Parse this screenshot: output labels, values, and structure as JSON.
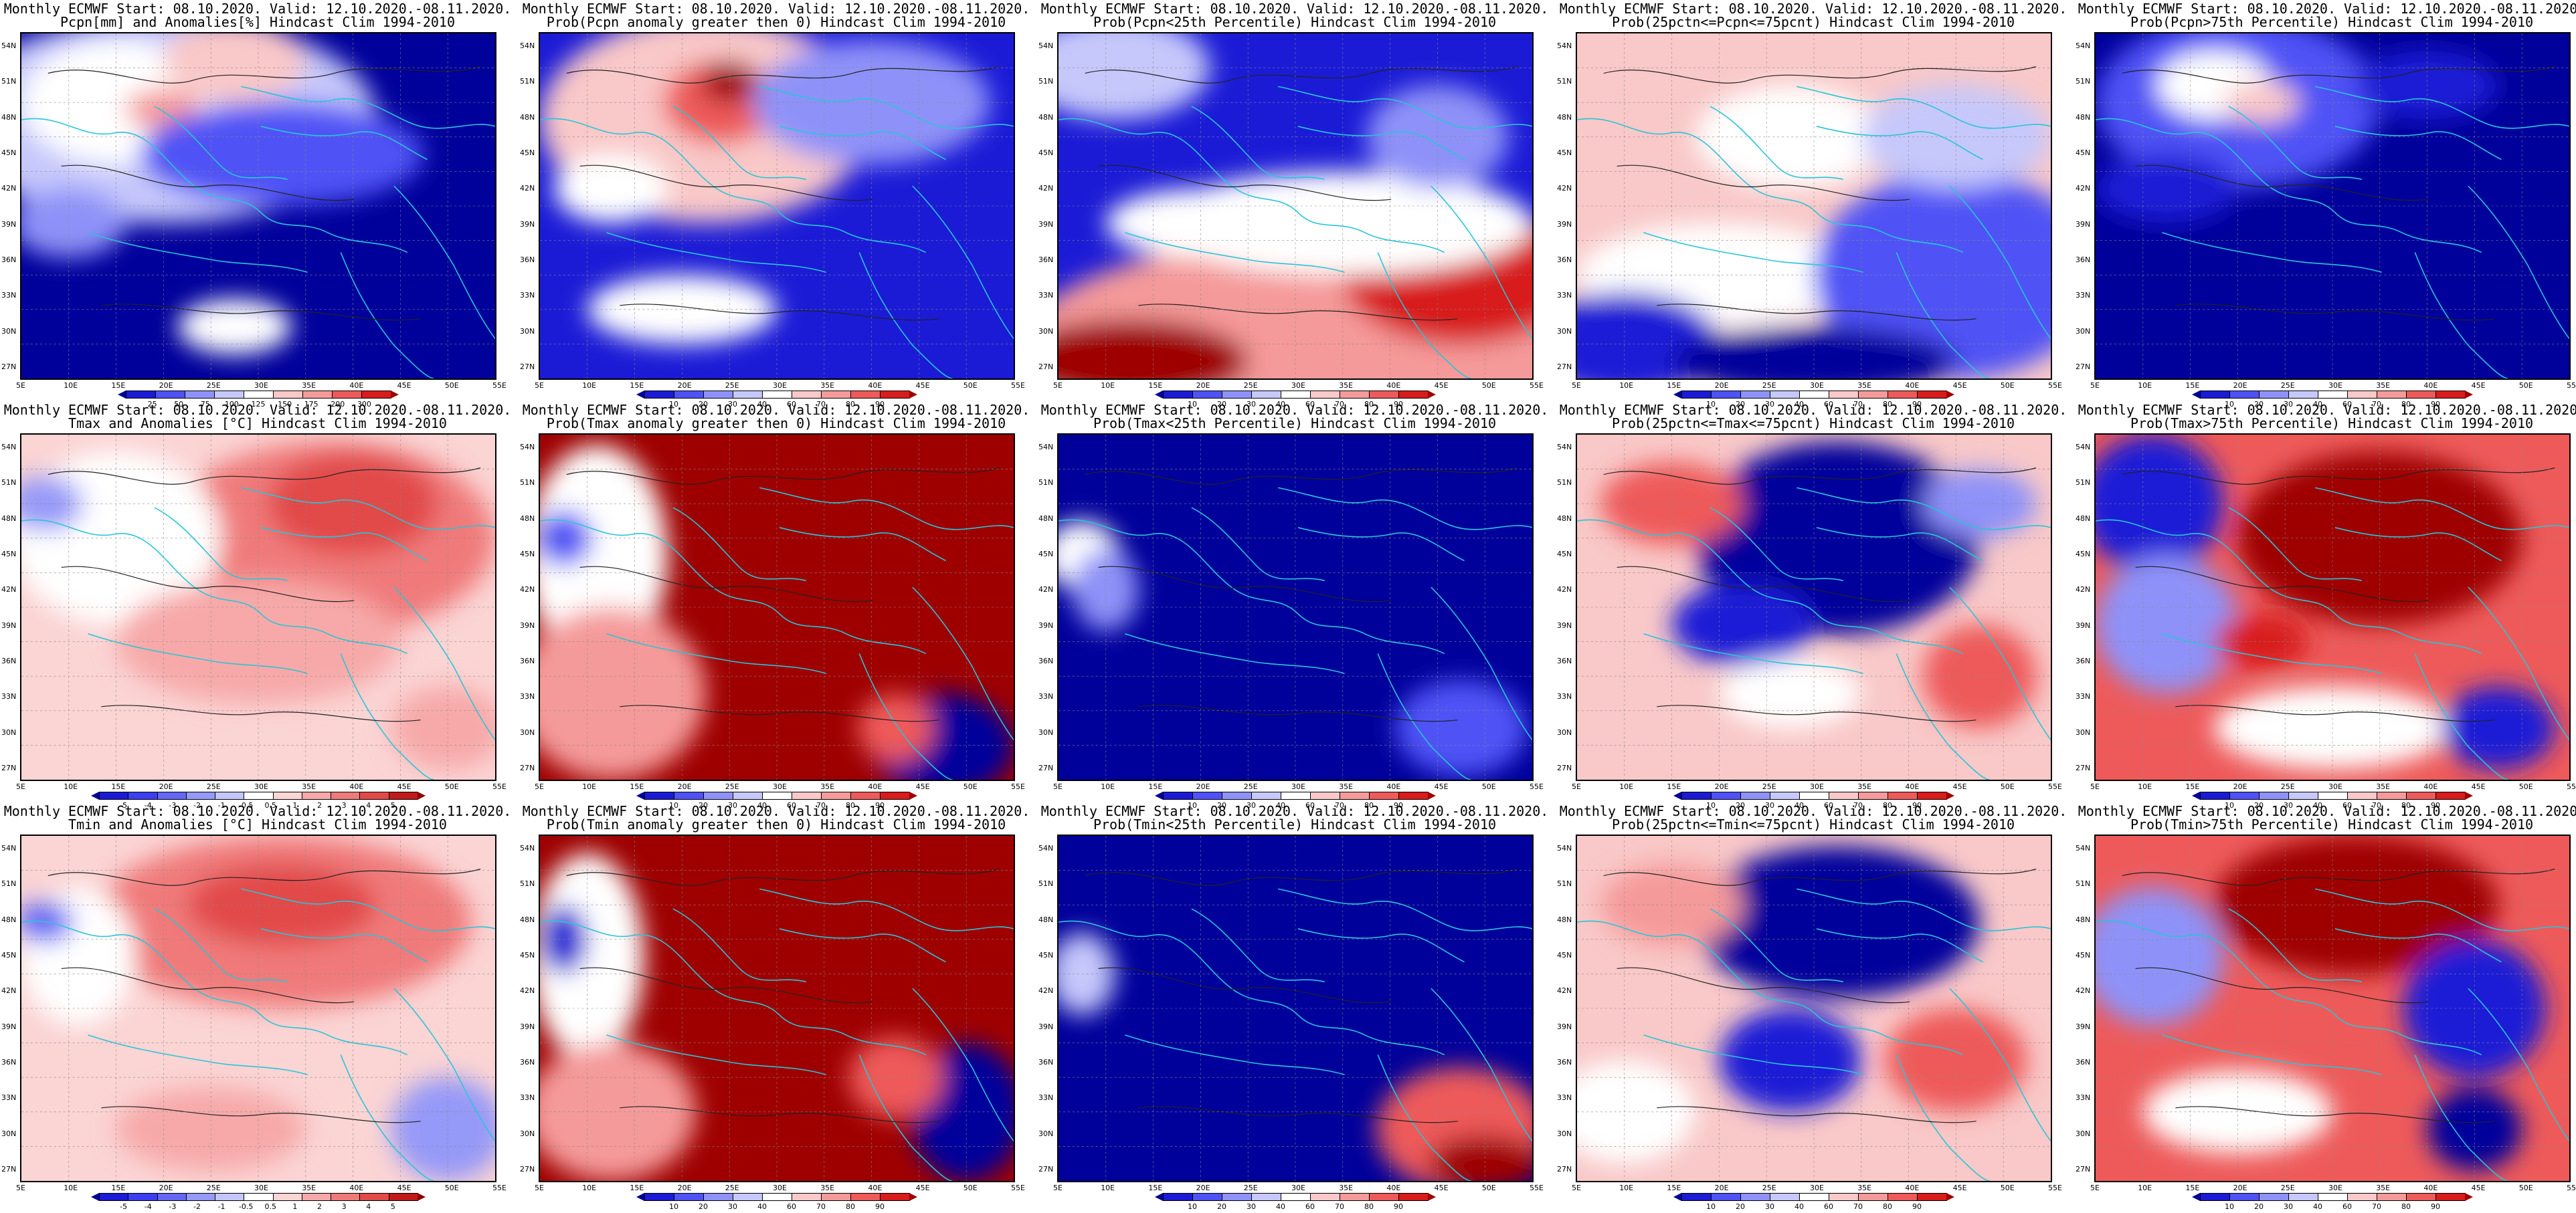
{
  "figure": {
    "common_header": "Monthly ECMWF Start: 08.10.2020. Valid: 12.10.2020.-08.11.2020.",
    "lat_ticks": [
      "54N",
      "51N",
      "48N",
      "45N",
      "42N",
      "39N",
      "36N",
      "33N",
      "30N",
      "27N"
    ],
    "lon_ticks": [
      "5E",
      "10E",
      "15E",
      "20E",
      "25E",
      "30E",
      "35E",
      "40E",
      "45E",
      "50E",
      "55E"
    ],
    "colorbars": {
      "pcpn": {
        "labels": [
          "25",
          "50",
          "75",
          "100",
          "125",
          "150",
          "175",
          "200",
          "300"
        ],
        "colors": [
          "#00009b",
          "#1b1bd6",
          "#4f52f5",
          "#8e92f8",
          "#c6c8fb",
          "#ffffff",
          "#f9c8c8",
          "#f59a9a",
          "#ee5a5a",
          "#d81b1b",
          "#9e0000"
        ]
      },
      "prob": {
        "labels": [
          "10",
          "20",
          "30",
          "40",
          "60",
          "70",
          "80",
          "90"
        ],
        "colors": [
          "#00009b",
          "#1b1bd6",
          "#4f52f5",
          "#8e92f8",
          "#c6c8fb",
          "#ffffff",
          "#f9c8c8",
          "#f59a9a",
          "#ee5a5a",
          "#d81b1b",
          "#9e0000"
        ]
      },
      "temp": {
        "labels": [
          "-5",
          "-4",
          "-3",
          "-2",
          "-1",
          "-0.5",
          "0.5",
          "1",
          "2",
          "3",
          "4",
          "5"
        ],
        "colors": [
          "#00009b",
          "#1b1bd6",
          "#3b3ff0",
          "#6468f5",
          "#9599f8",
          "#c3c6fb",
          "#ffffff",
          "#fbd4d4",
          "#f7a9a9",
          "#f07a7a",
          "#e24a4a",
          "#c21a1a",
          "#8b0000"
        ]
      }
    }
  },
  "panels": [
    {
      "title": "Pcpn[mm] and Anomalies[%] Hindcast Clim 1994-2010",
      "scheme": "pcpn_anom",
      "bar": "pcpn"
    },
    {
      "title": "Prob(Pcpn anomaly greater then 0) Hindcast Clim 1994-2010",
      "scheme": "pcpn_prob",
      "bar": "prob"
    },
    {
      "title": "Prob(Pcpn<25th Percentile) Hindcast Clim 1994-2010",
      "scheme": "pcpn_low",
      "bar": "prob"
    },
    {
      "title": "Prob(25pctn<=Pcpn<=75pcnt) Hindcast Clim 1994-2010",
      "scheme": "pcpn_mid",
      "bar": "prob"
    },
    {
      "title": "Prob(Pcpn>75th Percentile) Hindcast Clim 1994-2010",
      "scheme": "pcpn_high",
      "bar": "prob"
    },
    {
      "title": "Tmax and Anomalies [°C] Hindcast Clim 1994-2010",
      "scheme": "t_anom",
      "bar": "temp"
    },
    {
      "title": "Prob(Tmax anomaly greater then 0) Hindcast Clim 1994-2010",
      "scheme": "t_prob",
      "bar": "prob"
    },
    {
      "title": "Prob(Tmax<25th Percentile) Hindcast Clim 1994-2010",
      "scheme": "t_low",
      "bar": "prob"
    },
    {
      "title": "Prob(25pctn<=Tmax<=75pcnt) Hindcast Clim 1994-2010",
      "scheme": "t_mid",
      "bar": "prob"
    },
    {
      "title": "Prob(Tmax>75th Percentile) Hindcast Clim 1994-2010",
      "scheme": "t_high",
      "bar": "prob"
    },
    {
      "title": "Tmin and Anomalies [°C] Hindcast Clim 1994-2010",
      "scheme": "tn_anom",
      "bar": "temp"
    },
    {
      "title": "Prob(Tmin anomaly greater then 0) Hindcast Clim 1994-2010",
      "scheme": "tn_prob",
      "bar": "prob"
    },
    {
      "title": "Prob(Tmin<25th Percentile) Hindcast Clim 1994-2010",
      "scheme": "tn_low",
      "bar": "prob"
    },
    {
      "title": "Prob(25pctn<=Tmin<=75pcnt) Hindcast Clim 1994-2010",
      "scheme": "tn_mid",
      "bar": "prob"
    },
    {
      "title": "Prob(Tmin>75th Percentile) Hindcast Clim 1994-2010",
      "scheme": "tn_high",
      "bar": "prob"
    }
  ]
}
